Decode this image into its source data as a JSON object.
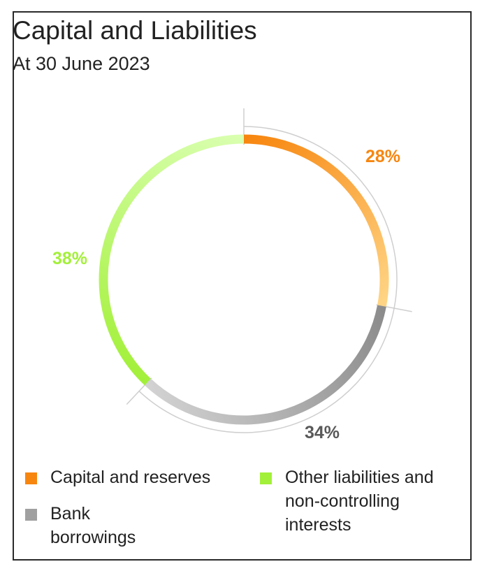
{
  "chart_data": {
    "type": "pie",
    "title": "Capital and Liabilities",
    "subtitle": "At 30 June 2023",
    "slices": [
      {
        "label": "Capital and reserves",
        "value": 28,
        "display": "28%",
        "color": "#f7860f",
        "color_light": "#ffd585",
        "label_color": "#f7860f"
      },
      {
        "label": "Bank borrowings",
        "value": 34,
        "display": "34%",
        "color": "#8c8c8c",
        "color_light": "#d2d2d2",
        "label_color": "#595959"
      },
      {
        "label": "Other liabilities and non-controlling interests",
        "value": 38,
        "display": "38%",
        "color": "#a3f03a",
        "color_light": "#d9ffaf",
        "label_color": "#a3f03a"
      }
    ]
  },
  "legend": [
    {
      "lines": [
        "Capital and reserves"
      ],
      "color": "#f7860f"
    },
    {
      "lines": [
        "Bank",
        "borrowings"
      ],
      "color": "#a0a0a0"
    },
    {
      "lines": [
        "Other liabilities and",
        "non-controlling",
        "interests"
      ],
      "color": "#a3f03a"
    }
  ]
}
